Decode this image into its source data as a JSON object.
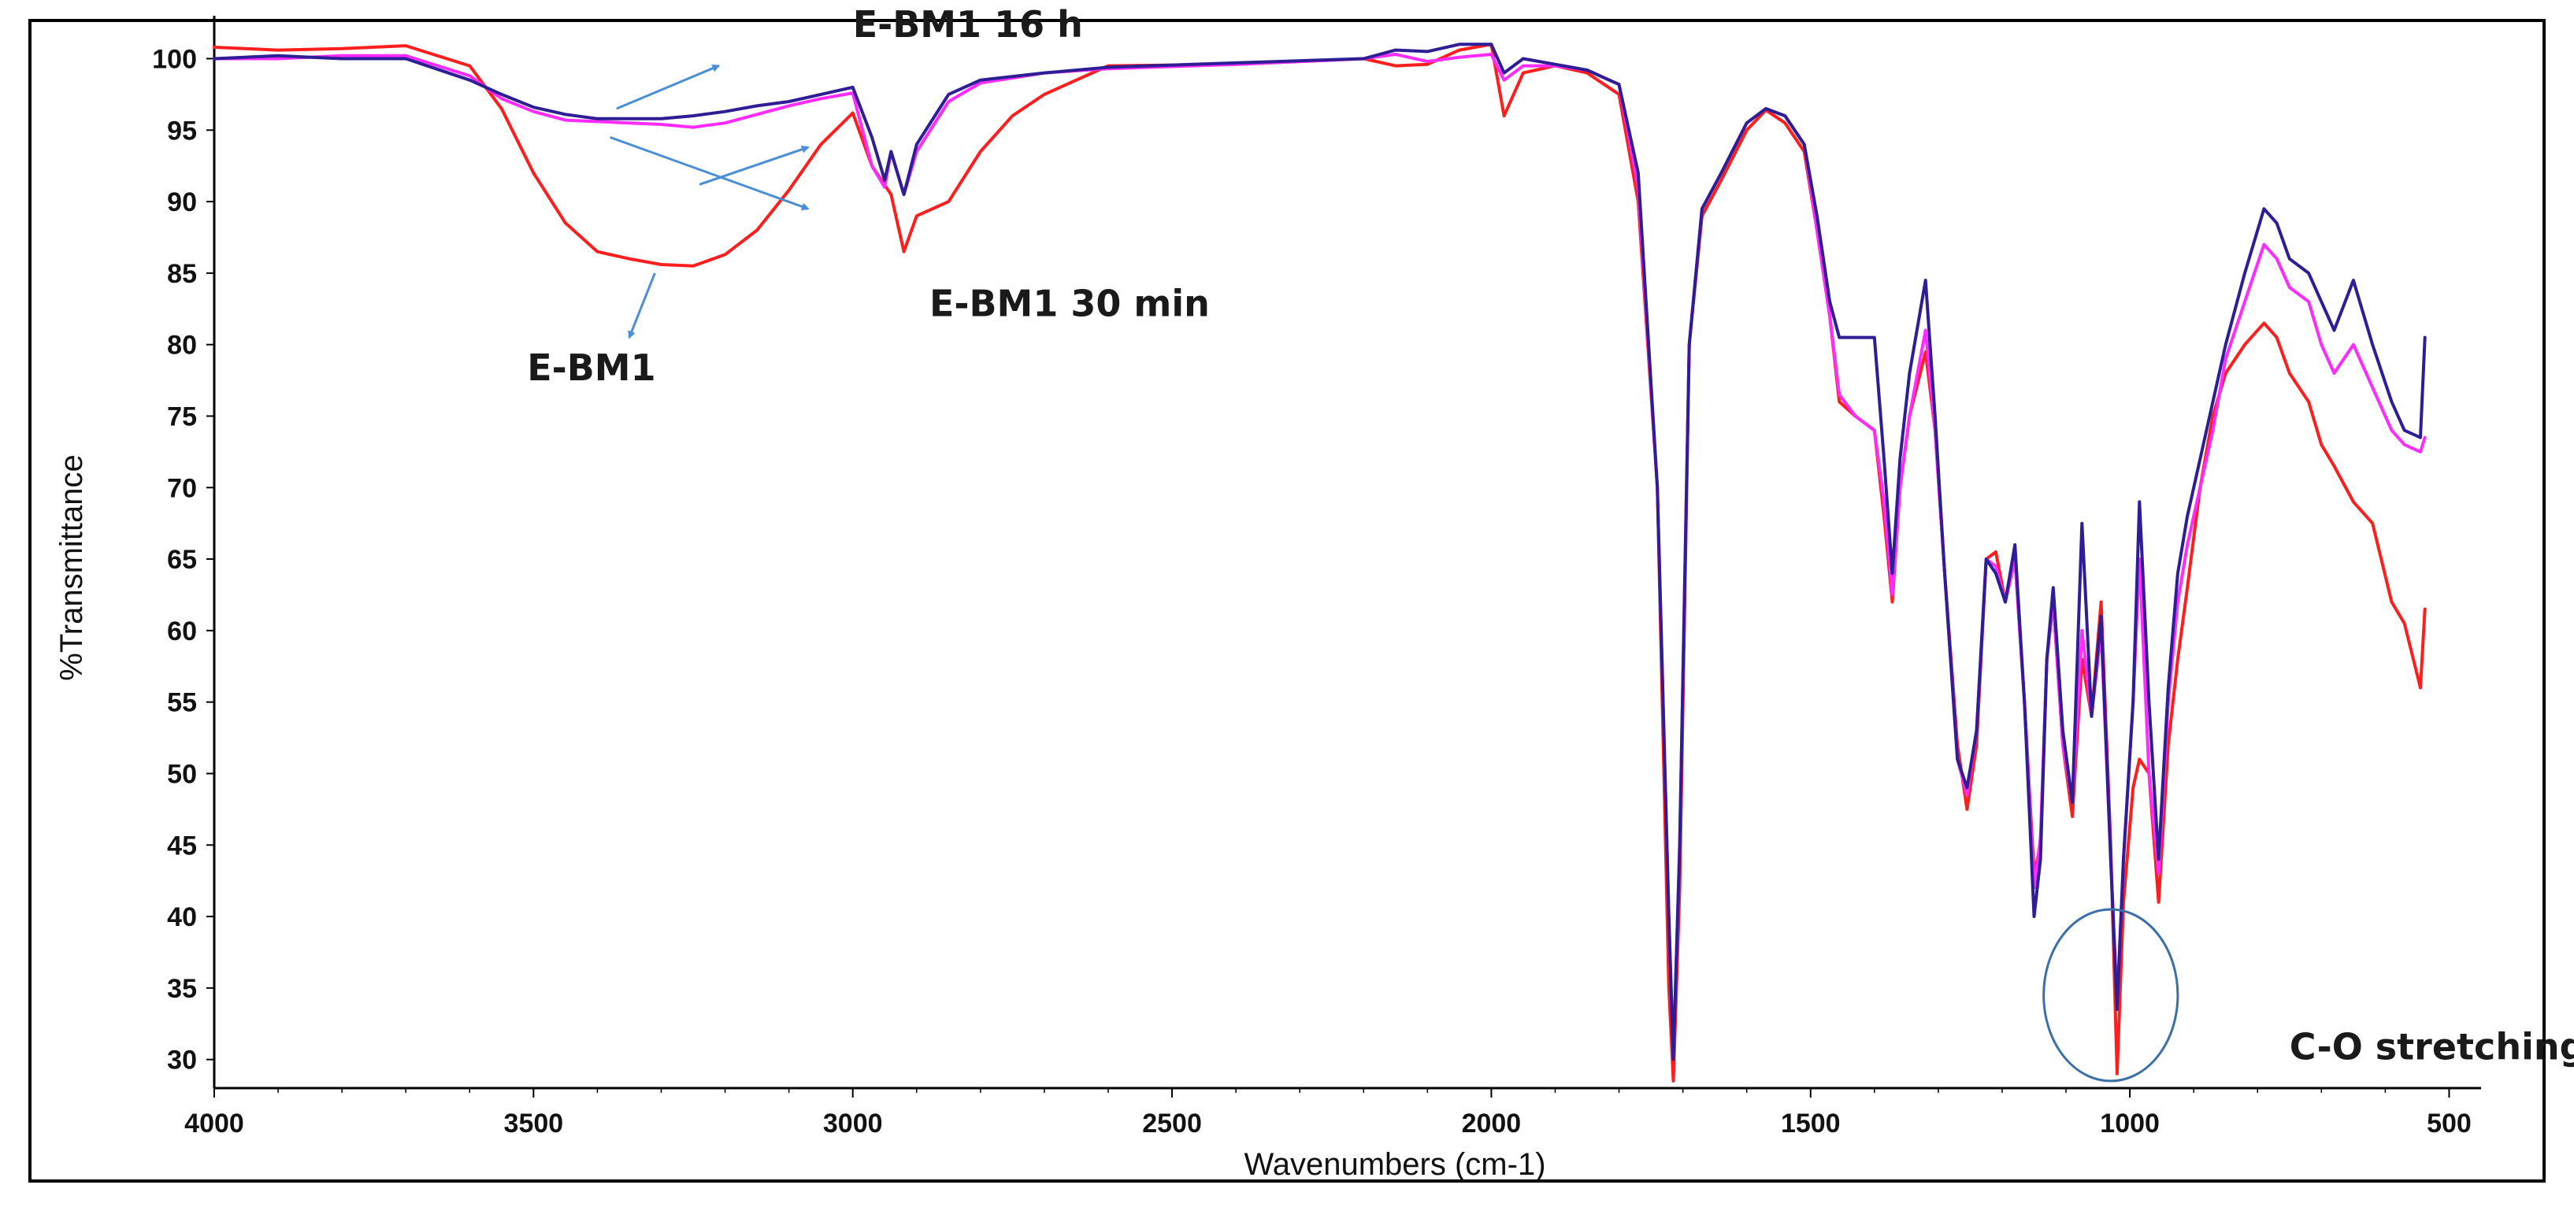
{
  "chart_data": {
    "type": "line",
    "title": "",
    "xlabel": "Wavenumbers (cm-1)",
    "ylabel": "%Transmittance",
    "xlim": [
      4000,
      450
    ],
    "ylim": [
      28,
      103
    ],
    "x_ticks": [
      4000,
      3500,
      3000,
      2500,
      2000,
      1500,
      1000,
      500
    ],
    "y_ticks": [
      30,
      35,
      40,
      45,
      50,
      55,
      60,
      65,
      70,
      75,
      80,
      85,
      90,
      95,
      100
    ],
    "grid": false,
    "legend": "none",
    "series": [
      {
        "name": "E-BM1",
        "color": "#ff1e1e",
        "points": [
          [
            4000,
            100.8
          ],
          [
            3900,
            100.6
          ],
          [
            3800,
            100.7
          ],
          [
            3700,
            100.9
          ],
          [
            3600,
            99.5
          ],
          [
            3550,
            96.5
          ],
          [
            3500,
            92
          ],
          [
            3450,
            88.5
          ],
          [
            3400,
            86.5
          ],
          [
            3350,
            86
          ],
          [
            3300,
            85.6
          ],
          [
            3250,
            85.5
          ],
          [
            3200,
            86.3
          ],
          [
            3150,
            88
          ],
          [
            3100,
            90.8
          ],
          [
            3050,
            94
          ],
          [
            3000,
            96.2
          ],
          [
            2970,
            92.5
          ],
          [
            2940,
            90.5
          ],
          [
            2920,
            86.5
          ],
          [
            2900,
            89
          ],
          [
            2850,
            90
          ],
          [
            2800,
            93.5
          ],
          [
            2750,
            96
          ],
          [
            2700,
            97.5
          ],
          [
            2650,
            98.5
          ],
          [
            2600,
            99.5
          ],
          [
            2400,
            99.6
          ],
          [
            2200,
            100
          ],
          [
            2150,
            99.5
          ],
          [
            2100,
            99.6
          ],
          [
            2050,
            100.6
          ],
          [
            2000,
            101
          ],
          [
            1980,
            96
          ],
          [
            1950,
            99
          ],
          [
            1900,
            99.5
          ],
          [
            1850,
            99
          ],
          [
            1800,
            97.5
          ],
          [
            1770,
            90
          ],
          [
            1740,
            70
          ],
          [
            1722,
            35
          ],
          [
            1715,
            28.5
          ],
          [
            1705,
            42
          ],
          [
            1690,
            80
          ],
          [
            1670,
            89
          ],
          [
            1640,
            91.5
          ],
          [
            1600,
            95
          ],
          [
            1570,
            96.4
          ],
          [
            1540,
            95.5
          ],
          [
            1510,
            93.5
          ],
          [
            1490,
            88
          ],
          [
            1470,
            82
          ],
          [
            1455,
            76
          ],
          [
            1430,
            75
          ],
          [
            1400,
            74
          ],
          [
            1385,
            68
          ],
          [
            1372,
            62
          ],
          [
            1360,
            70
          ],
          [
            1345,
            75
          ],
          [
            1320,
            79.5
          ],
          [
            1305,
            74
          ],
          [
            1290,
            64
          ],
          [
            1270,
            52
          ],
          [
            1255,
            47.5
          ],
          [
            1240,
            52
          ],
          [
            1225,
            65
          ],
          [
            1210,
            65.5
          ],
          [
            1195,
            62
          ],
          [
            1180,
            65
          ],
          [
            1165,
            55
          ],
          [
            1150,
            43
          ],
          [
            1140,
            45
          ],
          [
            1130,
            58
          ],
          [
            1120,
            62
          ],
          [
            1105,
            52
          ],
          [
            1090,
            47
          ],
          [
            1075,
            58
          ],
          [
            1060,
            54
          ],
          [
            1045,
            62
          ],
          [
            1030,
            45
          ],
          [
            1020,
            29
          ],
          [
            1010,
            41
          ],
          [
            995,
            49
          ],
          [
            985,
            51
          ],
          [
            970,
            50
          ],
          [
            955,
            41
          ],
          [
            940,
            52
          ],
          [
            925,
            58
          ],
          [
            910,
            63
          ],
          [
            890,
            70
          ],
          [
            870,
            75
          ],
          [
            850,
            78
          ],
          [
            820,
            80
          ],
          [
            790,
            81.5
          ],
          [
            770,
            80.5
          ],
          [
            750,
            78
          ],
          [
            720,
            76
          ],
          [
            700,
            73
          ],
          [
            680,
            71.5
          ],
          [
            650,
            69
          ],
          [
            620,
            67.5
          ],
          [
            590,
            62
          ],
          [
            570,
            60.5
          ],
          [
            545,
            56
          ],
          [
            538,
            61.5
          ]
        ]
      },
      {
        "name": "E-BM1 30 min",
        "color": "#ff2bff",
        "points": [
          [
            4000,
            100
          ],
          [
            3900,
            100
          ],
          [
            3800,
            100.2
          ],
          [
            3700,
            100.2
          ],
          [
            3600,
            98.8
          ],
          [
            3550,
            97.2
          ],
          [
            3500,
            96.3
          ],
          [
            3450,
            95.7
          ],
          [
            3400,
            95.6
          ],
          [
            3350,
            95.5
          ],
          [
            3300,
            95.4
          ],
          [
            3250,
            95.2
          ],
          [
            3200,
            95.5
          ],
          [
            3150,
            96.1
          ],
          [
            3100,
            96.7
          ],
          [
            3050,
            97.2
          ],
          [
            3000,
            97.6
          ],
          [
            2970,
            92.5
          ],
          [
            2950,
            91
          ],
          [
            2940,
            93.5
          ],
          [
            2920,
            90.5
          ],
          [
            2900,
            93.5
          ],
          [
            2850,
            97
          ],
          [
            2800,
            98.3
          ],
          [
            2700,
            99
          ],
          [
            2600,
            99.3
          ],
          [
            2400,
            99.6
          ],
          [
            2200,
            100
          ],
          [
            2150,
            100.3
          ],
          [
            2100,
            99.8
          ],
          [
            2050,
            100.1
          ],
          [
            2000,
            100.3
          ],
          [
            1980,
            98.5
          ],
          [
            1950,
            99.5
          ],
          [
            1900,
            99.5
          ],
          [
            1850,
            99.2
          ],
          [
            1800,
            98.2
          ],
          [
            1770,
            91
          ],
          [
            1740,
            70
          ],
          [
            1722,
            40
          ],
          [
            1715,
            30
          ],
          [
            1705,
            45
          ],
          [
            1690,
            80
          ],
          [
            1670,
            89.5
          ],
          [
            1640,
            92
          ],
          [
            1600,
            95.5
          ],
          [
            1570,
            96.5
          ],
          [
            1540,
            96
          ],
          [
            1510,
            94
          ],
          [
            1490,
            88
          ],
          [
            1470,
            82
          ],
          [
            1455,
            76.5
          ],
          [
            1430,
            75
          ],
          [
            1400,
            74
          ],
          [
            1385,
            69
          ],
          [
            1372,
            62.5
          ],
          [
            1360,
            70
          ],
          [
            1345,
            75
          ],
          [
            1320,
            81
          ],
          [
            1305,
            74
          ],
          [
            1290,
            64
          ],
          [
            1270,
            51
          ],
          [
            1255,
            48.5
          ],
          [
            1240,
            53
          ],
          [
            1225,
            65
          ],
          [
            1210,
            64.5
          ],
          [
            1195,
            62
          ],
          [
            1180,
            65
          ],
          [
            1165,
            55
          ],
          [
            1150,
            42
          ],
          [
            1140,
            45.5
          ],
          [
            1130,
            58
          ],
          [
            1120,
            62
          ],
          [
            1105,
            52
          ],
          [
            1090,
            48
          ],
          [
            1075,
            60
          ],
          [
            1060,
            54
          ],
          [
            1045,
            60
          ],
          [
            1030,
            44
          ],
          [
            1020,
            34
          ],
          [
            1010,
            44
          ],
          [
            995,
            55
          ],
          [
            985,
            65
          ],
          [
            970,
            50
          ],
          [
            955,
            43
          ],
          [
            940,
            55
          ],
          [
            925,
            62
          ],
          [
            910,
            66
          ],
          [
            890,
            70
          ],
          [
            870,
            74
          ],
          [
            850,
            79
          ],
          [
            820,
            83
          ],
          [
            790,
            87
          ],
          [
            770,
            86
          ],
          [
            750,
            84
          ],
          [
            720,
            83
          ],
          [
            700,
            80
          ],
          [
            680,
            78
          ],
          [
            650,
            80
          ],
          [
            620,
            77
          ],
          [
            590,
            74
          ],
          [
            570,
            73
          ],
          [
            545,
            72.5
          ],
          [
            538,
            73.5
          ]
        ]
      },
      {
        "name": "E-BM1 16 h",
        "color": "#2d1e96",
        "points": [
          [
            4000,
            100
          ],
          [
            3900,
            100.2
          ],
          [
            3800,
            100
          ],
          [
            3700,
            100
          ],
          [
            3600,
            98.5
          ],
          [
            3550,
            97.5
          ],
          [
            3500,
            96.6
          ],
          [
            3450,
            96.1
          ],
          [
            3400,
            95.8
          ],
          [
            3350,
            95.8
          ],
          [
            3300,
            95.8
          ],
          [
            3250,
            96
          ],
          [
            3200,
            96.3
          ],
          [
            3150,
            96.7
          ],
          [
            3100,
            97
          ],
          [
            3050,
            97.5
          ],
          [
            3000,
            98
          ],
          [
            2970,
            94.5
          ],
          [
            2950,
            91.5
          ],
          [
            2940,
            93.5
          ],
          [
            2920,
            90.5
          ],
          [
            2900,
            94
          ],
          [
            2850,
            97.5
          ],
          [
            2800,
            98.5
          ],
          [
            2700,
            99
          ],
          [
            2600,
            99.4
          ],
          [
            2400,
            99.7
          ],
          [
            2200,
            100
          ],
          [
            2150,
            100.6
          ],
          [
            2100,
            100.5
          ],
          [
            2050,
            101
          ],
          [
            2000,
            101
          ],
          [
            1980,
            99
          ],
          [
            1950,
            100
          ],
          [
            1900,
            99.6
          ],
          [
            1850,
            99.2
          ],
          [
            1800,
            98.2
          ],
          [
            1770,
            92
          ],
          [
            1740,
            70
          ],
          [
            1722,
            40
          ],
          [
            1715,
            30
          ],
          [
            1705,
            45
          ],
          [
            1690,
            80
          ],
          [
            1670,
            89.5
          ],
          [
            1640,
            92
          ],
          [
            1600,
            95.5
          ],
          [
            1570,
            96.5
          ],
          [
            1540,
            96
          ],
          [
            1510,
            94
          ],
          [
            1490,
            89
          ],
          [
            1470,
            83
          ],
          [
            1455,
            80.5
          ],
          [
            1430,
            80.5
          ],
          [
            1400,
            80.5
          ],
          [
            1385,
            72
          ],
          [
            1372,
            64
          ],
          [
            1360,
            72
          ],
          [
            1345,
            78
          ],
          [
            1320,
            84.5
          ],
          [
            1305,
            75
          ],
          [
            1290,
            64
          ],
          [
            1270,
            51
          ],
          [
            1255,
            49
          ],
          [
            1240,
            53
          ],
          [
            1225,
            65
          ],
          [
            1210,
            64
          ],
          [
            1195,
            62
          ],
          [
            1180,
            66
          ],
          [
            1165,
            55
          ],
          [
            1150,
            40
          ],
          [
            1140,
            44
          ],
          [
            1130,
            58
          ],
          [
            1120,
            63
          ],
          [
            1105,
            53
          ],
          [
            1090,
            48
          ],
          [
            1075,
            67.5
          ],
          [
            1060,
            54
          ],
          [
            1045,
            61
          ],
          [
            1030,
            44
          ],
          [
            1020,
            33.5
          ],
          [
            1010,
            44
          ],
          [
            995,
            55
          ],
          [
            985,
            69
          ],
          [
            970,
            55
          ],
          [
            955,
            44
          ],
          [
            940,
            56
          ],
          [
            925,
            64
          ],
          [
            910,
            68
          ],
          [
            890,
            72
          ],
          [
            870,
            76
          ],
          [
            850,
            80
          ],
          [
            820,
            85
          ],
          [
            790,
            89.5
          ],
          [
            770,
            88.5
          ],
          [
            750,
            86
          ],
          [
            720,
            85
          ],
          [
            700,
            83
          ],
          [
            680,
            81
          ],
          [
            650,
            84.5
          ],
          [
            620,
            80
          ],
          [
            590,
            76
          ],
          [
            570,
            74
          ],
          [
            545,
            73.5
          ],
          [
            538,
            80.5
          ]
        ]
      }
    ],
    "annotations": [
      {
        "text": "E-BM1 16 h",
        "wavenumber": 3000,
        "transmittance": 101.5
      },
      {
        "text": "E-BM1 30 min",
        "wavenumber": 2880,
        "transmittance": 82
      },
      {
        "text": "E-BM1",
        "wavenumber": 3510,
        "transmittance": 77.5
      },
      {
        "text": "C-O stretching",
        "wavenumber": 750,
        "transmittance": 30
      }
    ],
    "circle": {
      "wavenumber": 1030,
      "transmittance": 34.5,
      "radius_wavenumber": 105,
      "radius_transmittance": 6
    }
  }
}
